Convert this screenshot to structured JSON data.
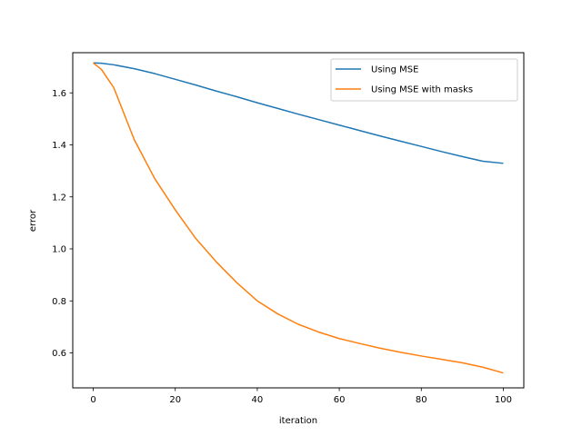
{
  "chart_data": {
    "type": "line",
    "title": "",
    "xlabel": "iteration",
    "ylabel": "error",
    "xlim": [
      -5,
      105
    ],
    "ylim": [
      0.4655,
      1.7545
    ],
    "x_ticks": [
      0,
      20,
      40,
      60,
      80,
      100
    ],
    "x_tick_labels": [
      "0",
      "20",
      "40",
      "60",
      "80",
      "100"
    ],
    "y_ticks": [
      0.6,
      0.8,
      1.0,
      1.2,
      1.4,
      1.6
    ],
    "y_tick_labels": [
      "0.6",
      "0.8",
      "1.0",
      "1.2",
      "1.4",
      "1.6"
    ],
    "grid": false,
    "legend_position": "top-right",
    "x": [
      0,
      2,
      5,
      10,
      15,
      20,
      25,
      30,
      35,
      40,
      45,
      50,
      55,
      60,
      65,
      70,
      75,
      80,
      85,
      90,
      95,
      100
    ],
    "series": [
      {
        "name": "Using MSE",
        "color": "#1f77b4",
        "values": [
          1.715,
          1.714,
          1.708,
          1.693,
          1.674,
          1.652,
          1.63,
          1.607,
          1.585,
          1.562,
          1.54,
          1.518,
          1.497,
          1.476,
          1.455,
          1.434,
          1.414,
          1.394,
          1.374,
          1.355,
          1.337,
          1.329
        ]
      },
      {
        "name": "Using MSE with masks",
        "color": "#ff7f0e",
        "values": [
          1.715,
          1.69,
          1.62,
          1.42,
          1.27,
          1.15,
          1.04,
          0.95,
          0.87,
          0.8,
          0.75,
          0.71,
          0.68,
          0.655,
          0.636,
          0.618,
          0.602,
          0.588,
          0.575,
          0.562,
          0.545,
          0.523
        ]
      }
    ]
  }
}
